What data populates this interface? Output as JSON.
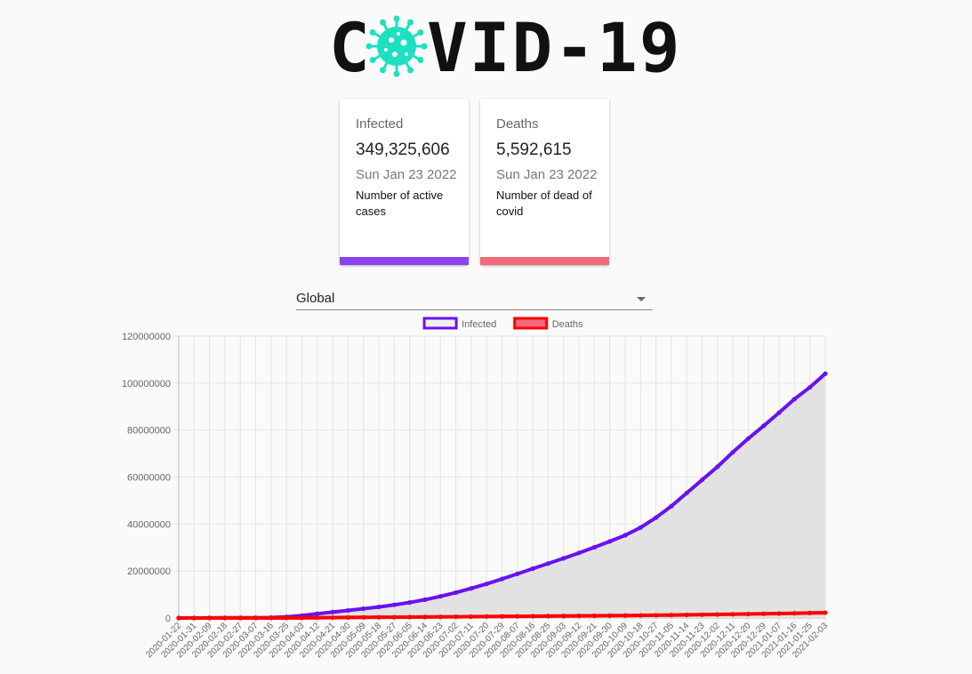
{
  "logo": {
    "text_left": "C",
    "text_right": "VID-19",
    "icon": "virus-icon",
    "color": "#1de0c0"
  },
  "cards": [
    {
      "title": "Infected",
      "value": "349,325,606",
      "date": "Sun Jan 23 2022",
      "description": "Number of active cases",
      "color": "#8d41f5"
    },
    {
      "title": "Deaths",
      "value": "5,592,615",
      "date": "Sun Jan 23 2022",
      "description": "Number of dead of covid",
      "color": "#f26b7a"
    }
  ],
  "country_select": {
    "value": "Global",
    "icon": "chevron-down-icon"
  },
  "chart_data": {
    "type": "line",
    "x_start": "2020-01-22",
    "x_end": "2021-02-03",
    "tick_labels": [
      "2020-01-22",
      "2020-01-31",
      "2020-02-09",
      "2020-02-18",
      "2020-02-27",
      "2020-03-07",
      "2020-03-16",
      "2020-03-25",
      "2020-04-03",
      "2020-04-12",
      "2020-04-21",
      "2020-04-30",
      "2020-05-09",
      "2020-05-18",
      "2020-05-27",
      "2020-06-05",
      "2020-06-14",
      "2020-06-23",
      "2020-07-02",
      "2020-07-11",
      "2020-07-20",
      "2020-07-29",
      "2020-08-07",
      "2020-08-16",
      "2020-08-25",
      "2020-09-03",
      "2020-09-12",
      "2020-09-21",
      "2020-09-30",
      "2020-10-09",
      "2020-10-18",
      "2020-10-27",
      "2020-11-05",
      "2020-11-14",
      "2020-11-23",
      "2020-12-02",
      "2020-12-11",
      "2020-12-20",
      "2020-12-29",
      "2021-01-07",
      "2021-01-16",
      "2021-01-25",
      "2021-02-03"
    ],
    "y_ticks": [
      "0",
      "20000000",
      "40000000",
      "60000000",
      "80000000",
      "100000000",
      "120000000"
    ],
    "ylim": [
      0,
      120000000
    ],
    "grid": true,
    "legend_position": "top-center",
    "series": [
      {
        "name": "Infected",
        "color": "#6a11ee",
        "fill": "#e0e0e0",
        "values": [
          555,
          12000,
          43000,
          76000,
          83000,
          110000,
          180000,
          470000,
          1000000,
          1800000,
          2500000,
          3200000,
          3950000,
          4700000,
          5600000,
          6600000,
          7800000,
          9200000,
          10800000,
          12600000,
          14500000,
          16600000,
          18800000,
          21000000,
          23200000,
          25400000,
          27700000,
          30100000,
          32600000,
          35200000,
          38500000,
          42700000,
          47600000,
          53200000,
          58800000,
          64400000,
          70600000,
          76400000,
          81800000,
          87400000,
          93200000,
          98200000,
          104000000
        ]
      },
      {
        "name": "Deaths",
        "color": "#ff0000",
        "fill": "#f26b7a",
        "values": [
          17,
          260,
          900,
          2100,
          2900,
          3600,
          7000,
          21000,
          55000,
          110000,
          170000,
          230000,
          275000,
          315000,
          350000,
          390000,
          430000,
          470000,
          515000,
          565000,
          610000,
          660000,
          715000,
          765000,
          815000,
          860000,
          905000,
          955000,
          1000000,
          1050000,
          1105000,
          1165000,
          1235000,
          1315000,
          1405000,
          1495000,
          1590000,
          1685000,
          1790000,
          1900000,
          2000000,
          2120000,
          2240000
        ]
      }
    ]
  }
}
